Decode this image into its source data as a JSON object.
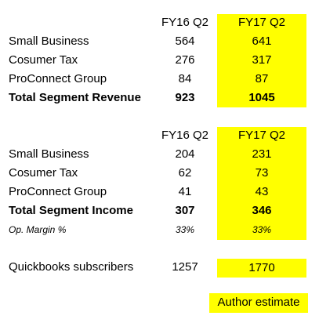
{
  "highlight_color": "#ffff00",
  "revenue_table": {
    "col1_header": "FY16 Q2",
    "col2_header": "FY17 Q2",
    "rows": [
      {
        "label": "Small Business",
        "fy16": "564",
        "fy17": "641"
      },
      {
        "label": "Cosumer Tax",
        "fy16": "276",
        "fy17": "317"
      },
      {
        "label": "ProConnect Group",
        "fy16": "84",
        "fy17": "87"
      }
    ],
    "total": {
      "label": "Total Segment Revenue",
      "fy16": "923",
      "fy17": "1045"
    }
  },
  "income_table": {
    "col1_header": "FY16 Q2",
    "col2_header": "FY17 Q2",
    "rows": [
      {
        "label": "Small Business",
        "fy16": "204",
        "fy17": "231"
      },
      {
        "label": "Cosumer Tax",
        "fy16": "62",
        "fy17": "73"
      },
      {
        "label": "ProConnect Group",
        "fy16": "41",
        "fy17": "43"
      }
    ],
    "total": {
      "label": "Total Segment Income",
      "fy16": "307",
      "fy17": "346"
    },
    "margin": {
      "label": "Op. Margin %",
      "fy16": "33%",
      "fy17": "33%"
    }
  },
  "subscribers": {
    "label": "Quickbooks subscribers",
    "fy16": "1257",
    "fy17": "1770"
  },
  "legend": {
    "label": "Author estimate"
  }
}
